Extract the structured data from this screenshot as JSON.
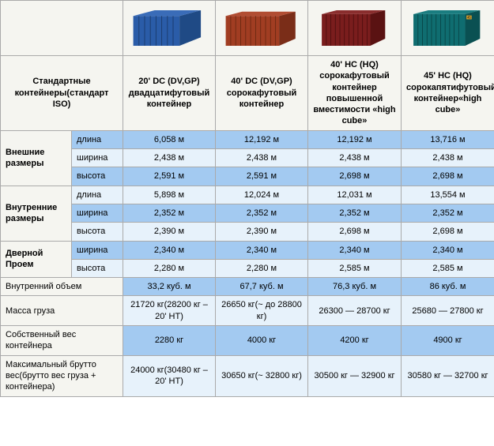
{
  "columns": {
    "rowLabel": "Стандартные контейнеры(стандарт ISO)",
    "headers": [
      "20' DC (DV,GP) двадцатифутовый контейнер",
      "40' DC (DV,GP) сорокафутовый контейнер",
      "40' HC (HQ) сорокафутовый контейнер повышенной вместимости «high cube»",
      "45' HC (HQ) сорокапятифутовый контейнер«high cube»"
    ]
  },
  "containerColors": [
    "#2a5ca8",
    "#a13d22",
    "#7a1d1d",
    "#0f6d70"
  ],
  "groups": [
    {
      "label": "Внешние размеры",
      "rows": [
        {
          "label": "длина",
          "vals": [
            "6,058 м",
            "12,192 м",
            "12,192 м",
            "13,716 м"
          ],
          "style": "dark"
        },
        {
          "label": "ширина",
          "vals": [
            "2,438 м",
            "2,438 м",
            "2,438 м",
            "2,438 м"
          ],
          "style": "light"
        },
        {
          "label": "высота",
          "vals": [
            "2,591 м",
            "2,591 м",
            "2,698 м",
            "2,698 м"
          ],
          "style": "dark"
        }
      ]
    },
    {
      "label": "Внутренние размеры",
      "rows": [
        {
          "label": "длина",
          "vals": [
            "5,898 м",
            "12,024 м",
            "12,031 м",
            "13,554 м"
          ],
          "style": "light"
        },
        {
          "label": "ширина",
          "vals": [
            "2,352 м",
            "2,352 м",
            "2,352 м",
            "2,352 м"
          ],
          "style": "dark"
        },
        {
          "label": "высота",
          "vals": [
            "2,390 м",
            "2,390 м",
            "2,698 м",
            "2,698 м"
          ],
          "style": "light"
        }
      ]
    },
    {
      "label": "Дверной Проем",
      "rows": [
        {
          "label": "ширина",
          "vals": [
            "2,340 м",
            "2,340 м",
            "2,340 м",
            "2,340 м"
          ],
          "style": "dark"
        },
        {
          "label": "высота",
          "vals": [
            "2,280 м",
            "2,280 м",
            "2,585 м",
            "2,585 м"
          ],
          "style": "light"
        }
      ]
    }
  ],
  "singleRows": [
    {
      "label": "Внутренний объем",
      "vals": [
        "33,2 куб. м",
        "67,7 куб. м",
        "76,3 куб. м",
        "86 куб. м"
      ],
      "style": "dark"
    },
    {
      "label": "Масса груза",
      "vals": [
        "21720 кг(28200 кг – 20' HT)",
        "26650 кг(~ до 28800 кг)",
        "26300 — 28700 кг",
        "25680 — 27800 кг"
      ],
      "style": "light"
    },
    {
      "label": "Собственный вес контейнера",
      "vals": [
        "2280 кг",
        "4000 кг",
        "4200 кг",
        "4900 кг"
      ],
      "style": "dark"
    },
    {
      "label": "Максимальный брутто вес(брутто вес груза + контейнера)",
      "vals": [
        "24000 кг(30480 кг – 20' HT)",
        "30650 кг(~ 32800 кг)",
        "30500 кг — 32900 кг",
        "30580 кг — 32700 кг"
      ],
      "style": "light"
    }
  ],
  "styling": {
    "darkRowColor": "#a3caf1",
    "lightRowColor": "#e7f2fb",
    "headerBgColor": "#f5f5f0",
    "borderColor": "#aaaaaa",
    "fontSize": 11,
    "headerFontSize": 11
  }
}
